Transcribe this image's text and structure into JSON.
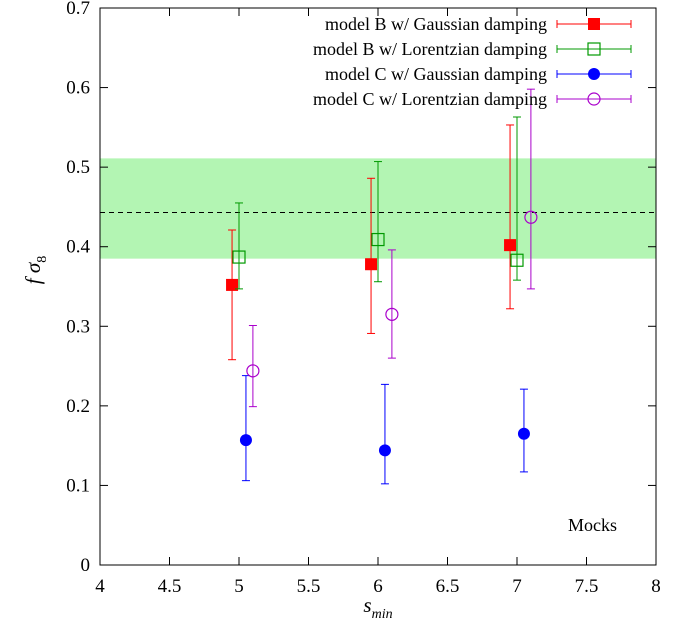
{
  "chart_data": {
    "type": "scatter",
    "title": "",
    "xlabel": "s",
    "xlabel_sub": "min",
    "ylabel": "f σ",
    "ylabel_sub": "8",
    "xlim": [
      4,
      8
    ],
    "ylim": [
      0,
      0.7
    ],
    "xticks": [
      4,
      4.5,
      5,
      5.5,
      6,
      6.5,
      7,
      7.5,
      8
    ],
    "xtick_labels": [
      "4",
      "4.5",
      "5",
      "5.5",
      "6",
      "6.5",
      "7",
      "7.5",
      "8"
    ],
    "yticks": [
      0,
      0.1,
      0.2,
      0.3,
      0.4,
      0.5,
      0.6,
      0.7
    ],
    "ytick_labels": [
      "0",
      "0.1",
      "0.2",
      "0.3",
      "0.4",
      "0.5",
      "0.6",
      "0.7"
    ],
    "grid": false,
    "legend_position": "top-right",
    "annotation": "Mocks",
    "reference_line": {
      "y": 0.443,
      "style": "dashed",
      "color": "#000000"
    },
    "reference_band": {
      "y_low": 0.385,
      "y_high": 0.511,
      "color": "#b3f5b3"
    },
    "series": [
      {
        "name": "model B w/ Gaussian damping",
        "color": "#ff0000",
        "marker": "filled-square",
        "x": [
          4.95,
          5.95,
          6.95
        ],
        "y": [
          0.352,
          0.378,
          0.402
        ],
        "y_low": [
          0.258,
          0.291,
          0.322
        ],
        "y_high": [
          0.421,
          0.486,
          0.553
        ]
      },
      {
        "name": "model B w/ Lorentzian damping",
        "color": "#009900",
        "marker": "open-square",
        "x": [
          5.0,
          6.0,
          7.0
        ],
        "y": [
          0.387,
          0.409,
          0.383
        ],
        "y_low": [
          0.347,
          0.356,
          0.358
        ],
        "y_high": [
          0.455,
          0.507,
          0.563
        ]
      },
      {
        "name": "model C w/ Gaussian damping",
        "color": "#0000ff",
        "marker": "filled-circle",
        "x": [
          5.05,
          6.05,
          7.05
        ],
        "y": [
          0.157,
          0.144,
          0.165
        ],
        "y_low": [
          0.106,
          0.102,
          0.117
        ],
        "y_high": [
          0.238,
          0.227,
          0.221
        ]
      },
      {
        "name": "model C w/ Lorentzian damping",
        "color": "#aa00cc",
        "marker": "open-circle",
        "x": [
          5.1,
          6.1,
          7.1
        ],
        "y": [
          0.244,
          0.315,
          0.437
        ],
        "y_low": [
          0.199,
          0.26,
          0.347
        ],
        "y_high": [
          0.301,
          0.396,
          0.598
        ]
      }
    ]
  }
}
